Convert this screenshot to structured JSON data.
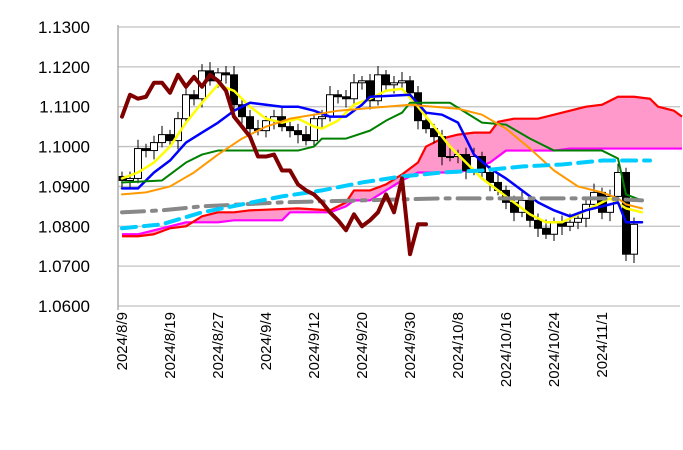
{
  "chart_data": {
    "type": "candlestick",
    "title": "",
    "xlabel": "",
    "ylabel": "",
    "ylim": [
      1.06,
      1.13
    ],
    "grid": true,
    "yticks": [
      "1.0600",
      "1.0700",
      "1.0800",
      "1.0900",
      "1.1000",
      "1.1100",
      "1.1200",
      "1.1300"
    ],
    "ytick_values": [
      1.06,
      1.07,
      1.08,
      1.09,
      1.1,
      1.11,
      1.12,
      1.13
    ],
    "xticks": [
      {
        "i": 0,
        "label": "2024/8/9"
      },
      {
        "i": 6,
        "label": "2024/8/19"
      },
      {
        "i": 12,
        "label": "2024/8/27"
      },
      {
        "i": 18,
        "label": "2024/9/4"
      },
      {
        "i": 24,
        "label": "2024/9/12"
      },
      {
        "i": 30,
        "label": "2024/9/20"
      },
      {
        "i": 36,
        "label": "2024/9/30"
      },
      {
        "i": 42,
        "label": "2024/10/8"
      },
      {
        "i": 48,
        "label": "2024/10/16"
      },
      {
        "i": 54,
        "label": "2024/10/24"
      },
      {
        "i": 60,
        "label": "2024/11/1"
      }
    ],
    "x_count": 70,
    "closes": [
      1.0915,
      1.092,
      1.0995,
      1.099,
      1.101,
      1.103,
      1.1015,
      1.107,
      1.113,
      1.112,
      1.119,
      1.1165,
      1.1185,
      1.118,
      1.1105,
      1.1075,
      1.1045,
      1.104,
      1.1065,
      1.1075,
      1.105,
      1.104,
      1.103,
      1.1015,
      1.107,
      1.1075,
      1.113,
      1.1125,
      1.112,
      1.116,
      1.1165,
      1.1115,
      1.118,
      1.1155,
      1.116,
      1.1165,
      1.1135,
      1.1065,
      1.1045,
      1.1025,
      1.0975,
      1.0975,
      1.098,
      1.094,
      1.0975,
      1.0935,
      1.091,
      1.089,
      1.086,
      1.0835,
      1.0865,
      1.0815,
      1.0795,
      1.078,
      1.081,
      1.08,
      1.081,
      1.082,
      1.0855,
      1.0885,
      1.0835,
      1.0875,
      1.0935,
      1.073,
      1.0805
    ],
    "first_open": 1.0925,
    "series": [
      {
        "name": "conversion",
        "color": "#ffff00",
        "width": 2.5,
        "dash": "",
        "points": [
          [
            0,
            1.092
          ],
          [
            2,
            1.0935
          ],
          [
            4,
            1.096
          ],
          [
            6,
            1.1
          ],
          [
            8,
            1.106
          ],
          [
            10,
            1.111
          ],
          [
            12,
            1.1155
          ],
          [
            14,
            1.114
          ],
          [
            16,
            1.11
          ],
          [
            18,
            1.107
          ],
          [
            20,
            1.106
          ],
          [
            22,
            1.107
          ],
          [
            24,
            1.105
          ],
          [
            25,
            1.1045
          ],
          [
            27,
            1.1065
          ],
          [
            29,
            1.1105
          ],
          [
            31,
            1.112
          ],
          [
            33,
            1.114
          ],
          [
            35,
            1.1145
          ],
          [
            37,
            1.11
          ],
          [
            39,
            1.105
          ],
          [
            41,
            1.1
          ],
          [
            43,
            1.096
          ],
          [
            45,
            1.092
          ],
          [
            47,
            1.089
          ],
          [
            49,
            1.086
          ],
          [
            51,
            1.083
          ],
          [
            53,
            1.081
          ],
          [
            55,
            1.081
          ],
          [
            57,
            1.083
          ],
          [
            59,
            1.085
          ],
          [
            61,
            1.087
          ],
          [
            63,
            1.0845
          ],
          [
            65,
            1.0835
          ]
        ]
      },
      {
        "name": "base",
        "color": "#0000ff",
        "width": 2.5,
        "dash": "",
        "points": [
          [
            0,
            1.0895
          ],
          [
            2,
            1.0895
          ],
          [
            4,
            1.0935
          ],
          [
            6,
            1.0965
          ],
          [
            8,
            1.101
          ],
          [
            10,
            1.1035
          ],
          [
            12,
            1.106
          ],
          [
            14,
            1.109
          ],
          [
            16,
            1.111
          ],
          [
            18,
            1.1105
          ],
          [
            20,
            1.11
          ],
          [
            22,
            1.11
          ],
          [
            24,
            1.109
          ],
          [
            26,
            1.1075
          ],
          [
            28,
            1.1075
          ],
          [
            30,
            1.1105
          ],
          [
            31,
            1.1125
          ],
          [
            36,
            1.113
          ],
          [
            38,
            1.1085
          ],
          [
            40,
            1.108
          ],
          [
            42,
            1.106
          ],
          [
            44,
            1.098
          ],
          [
            46,
            1.0945
          ],
          [
            48,
            1.092
          ],
          [
            50,
            1.089
          ],
          [
            52,
            1.086
          ],
          [
            54,
            1.084
          ],
          [
            56,
            1.0825
          ],
          [
            58,
            1.084
          ],
          [
            60,
            1.085
          ],
          [
            62,
            1.086
          ],
          [
            63,
            1.081
          ],
          [
            65,
            1.081
          ]
        ]
      },
      {
        "name": "ma-green",
        "color": "#008000",
        "width": 2,
        "dash": "",
        "points": [
          [
            0,
            1.091
          ],
          [
            5,
            1.0915
          ],
          [
            8,
            1.096
          ],
          [
            10,
            1.098
          ],
          [
            12,
            1.099
          ],
          [
            22,
            1.099
          ],
          [
            24,
            1.1
          ],
          [
            25,
            1.102
          ],
          [
            28,
            1.102
          ],
          [
            31,
            1.104
          ],
          [
            33,
            1.1065
          ],
          [
            35,
            1.1085
          ],
          [
            36,
            1.111
          ],
          [
            41,
            1.111
          ],
          [
            45,
            1.106
          ],
          [
            48,
            1.1055
          ],
          [
            51,
            1.102
          ],
          [
            54,
            1.099
          ],
          [
            60,
            1.099
          ],
          [
            62,
            1.097
          ],
          [
            63,
            1.088
          ],
          [
            65,
            1.0865
          ]
        ]
      },
      {
        "name": "ma-orange",
        "color": "#ff9900",
        "width": 2,
        "dash": "",
        "points": [
          [
            0,
            1.088
          ],
          [
            3,
            1.0885
          ],
          [
            6,
            1.09
          ],
          [
            9,
            1.0935
          ],
          [
            12,
            1.098
          ],
          [
            15,
            1.102
          ],
          [
            18,
            1.105
          ],
          [
            21,
            1.107
          ],
          [
            24,
            1.108
          ],
          [
            27,
            1.109
          ],
          [
            30,
            1.1095
          ],
          [
            33,
            1.11
          ],
          [
            36,
            1.1105
          ],
          [
            39,
            1.11
          ],
          [
            42,
            1.1095
          ],
          [
            45,
            1.108
          ],
          [
            48,
            1.1045
          ],
          [
            51,
            1.0995
          ],
          [
            54,
            1.094
          ],
          [
            57,
            1.09
          ],
          [
            60,
            1.0885
          ],
          [
            62,
            1.087
          ],
          [
            63,
            1.0855
          ],
          [
            65,
            1.0845
          ]
        ]
      },
      {
        "name": "ma-gray",
        "color": "#888888",
        "width": 4,
        "dash": "22 8 4 8",
        "points": [
          [
            0,
            1.0835
          ],
          [
            5,
            1.084
          ],
          [
            10,
            1.085
          ],
          [
            20,
            1.086
          ],
          [
            30,
            1.0865
          ],
          [
            40,
            1.087
          ],
          [
            50,
            1.087
          ],
          [
            60,
            1.087
          ],
          [
            65,
            1.0865
          ]
        ]
      },
      {
        "name": "ma-cyan",
        "color": "#00ccff",
        "width": 4,
        "dash": "14 8",
        "points": [
          [
            0,
            1.0795
          ],
          [
            5,
            1.0805
          ],
          [
            10,
            1.0835
          ],
          [
            15,
            1.0855
          ],
          [
            20,
            1.0875
          ],
          [
            25,
            1.089
          ],
          [
            30,
            1.091
          ],
          [
            35,
            1.0925
          ],
          [
            40,
            1.0935
          ],
          [
            45,
            1.094
          ],
          [
            50,
            1.095
          ],
          [
            55,
            1.0955
          ],
          [
            60,
            1.0965
          ],
          [
            66,
            1.0965
          ]
        ]
      },
      {
        "name": "lagging-span",
        "color": "#800000",
        "width": 4,
        "dash": "",
        "points": [
          [
            0,
            1.1075
          ],
          [
            1,
            1.113
          ],
          [
            2,
            1.112
          ],
          [
            3,
            1.1125
          ],
          [
            4,
            1.116
          ],
          [
            5,
            1.116
          ],
          [
            6,
            1.1135
          ],
          [
            7,
            1.118
          ],
          [
            8,
            1.115
          ],
          [
            9,
            1.1175
          ],
          [
            10,
            1.115
          ],
          [
            11,
            1.118
          ],
          [
            12,
            1.1165
          ],
          [
            13,
            1.114
          ],
          [
            14,
            1.1075
          ],
          [
            15,
            1.105
          ],
          [
            16,
            1.1025
          ],
          [
            17,
            1.0975
          ],
          [
            18,
            1.0975
          ],
          [
            19,
            1.098
          ],
          [
            20,
            1.094
          ],
          [
            21,
            1.094
          ],
          [
            22,
            1.0905
          ],
          [
            23,
            1.089
          ],
          [
            24,
            1.088
          ],
          [
            25,
            1.086
          ],
          [
            26,
            1.0835
          ],
          [
            27,
            1.0815
          ],
          [
            28,
            1.079
          ],
          [
            29,
            1.083
          ],
          [
            30,
            1.08
          ],
          [
            31,
            1.0815
          ],
          [
            32,
            1.0835
          ],
          [
            33,
            1.088
          ],
          [
            34,
            1.0835
          ],
          [
            35,
            1.092
          ],
          [
            36,
            1.073
          ],
          [
            37,
            1.0805
          ],
          [
            38,
            1.0805
          ]
        ]
      }
    ],
    "cloud": {
      "fill": "#ff99cc",
      "span_a": {
        "name": "leading-span-a",
        "color": "#ff0000",
        "points": [
          [
            0,
            1.0775
          ],
          [
            2,
            1.0775
          ],
          [
            4,
            1.078
          ],
          [
            6,
            1.0795
          ],
          [
            8,
            1.08
          ],
          [
            10,
            1.0825
          ],
          [
            12,
            1.0835
          ],
          [
            14,
            1.0835
          ],
          [
            16,
            1.084
          ],
          [
            22,
            1.0845
          ],
          [
            26,
            1.084
          ],
          [
            28,
            1.086
          ],
          [
            29,
            1.089
          ],
          [
            31,
            1.089
          ],
          [
            33,
            1.0905
          ],
          [
            35,
            1.093
          ],
          [
            37,
            1.096
          ],
          [
            38,
            1.1
          ],
          [
            40,
            1.102
          ],
          [
            42,
            1.103
          ],
          [
            44,
            1.1035
          ],
          [
            46,
            1.1035
          ],
          [
            47,
            1.1062
          ],
          [
            49,
            1.107
          ],
          [
            52,
            1.107
          ],
          [
            54,
            1.108
          ],
          [
            56,
            1.109
          ],
          [
            58,
            1.11
          ],
          [
            60,
            1.1105
          ],
          [
            62,
            1.1125
          ],
          [
            64,
            1.1125
          ],
          [
            66,
            1.112
          ],
          [
            67,
            1.11
          ],
          [
            69,
            1.109
          ],
          [
            70,
            1.1075
          ]
        ]
      },
      "span_b": {
        "name": "leading-span-b",
        "color": "#ff00ff",
        "points": [
          [
            0,
            1.078
          ],
          [
            2,
            1.078
          ],
          [
            4,
            1.079
          ],
          [
            6,
            1.08
          ],
          [
            8,
            1.081
          ],
          [
            12,
            1.081
          ],
          [
            14,
            1.0815
          ],
          [
            20,
            1.0815
          ],
          [
            21,
            1.0835
          ],
          [
            26,
            1.0835
          ],
          [
            28,
            1.085
          ],
          [
            29,
            1.0865
          ],
          [
            31,
            1.0865
          ],
          [
            33,
            1.089
          ],
          [
            35,
            1.0915
          ],
          [
            37,
            1.0935
          ],
          [
            42,
            1.0935
          ],
          [
            44,
            1.0945
          ],
          [
            46,
            1.096
          ],
          [
            48,
            1.099
          ],
          [
            54,
            1.099
          ],
          [
            56,
            1.0995
          ],
          [
            70,
            1.0995
          ]
        ]
      }
    }
  }
}
